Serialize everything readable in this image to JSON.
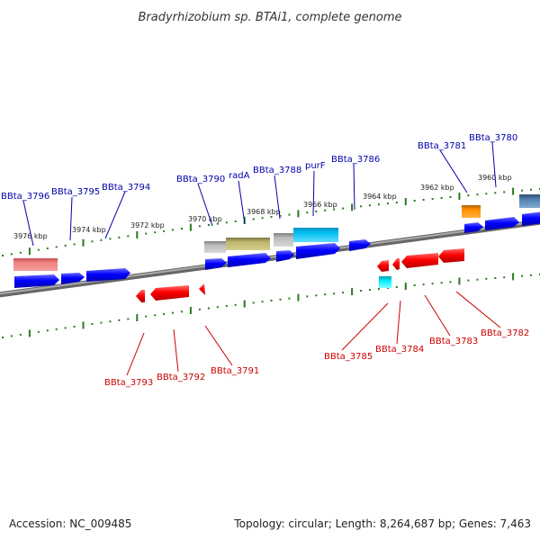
{
  "title": "Bradyrhizobium sp. BTAi1, complete genome",
  "footer": {
    "accession": "Accession: NC_009485",
    "summary": "Topology: circular; Length: 8,264,687 bp; Genes: 7,463"
  },
  "colors": {
    "forward_label": "#0000aa",
    "reverse_label": "#cc0000",
    "tick": "#2a7a1e",
    "backbone": "#888888"
  },
  "scale_ticks": [
    "3976 kbp",
    "3974 kbp",
    "3972 kbp",
    "3970 kbp",
    "3968 kbp",
    "3966 kbp",
    "3964 kbp",
    "3962 kbp",
    "3960 kbp"
  ],
  "forward_labels": [
    "BBta_3796",
    "BBta_3795",
    "BBta_3794",
    "BBta_3790",
    "radA",
    "BBta_3788",
    "purF",
    "BBta_3786",
    "BBta_3781",
    "BBta_3780"
  ],
  "reverse_labels": [
    "BBta_3793",
    "BBta_3792",
    "BBta_3791",
    "BBta_3785",
    "BBta_3784",
    "BBta_3783",
    "BBta_3782"
  ]
}
